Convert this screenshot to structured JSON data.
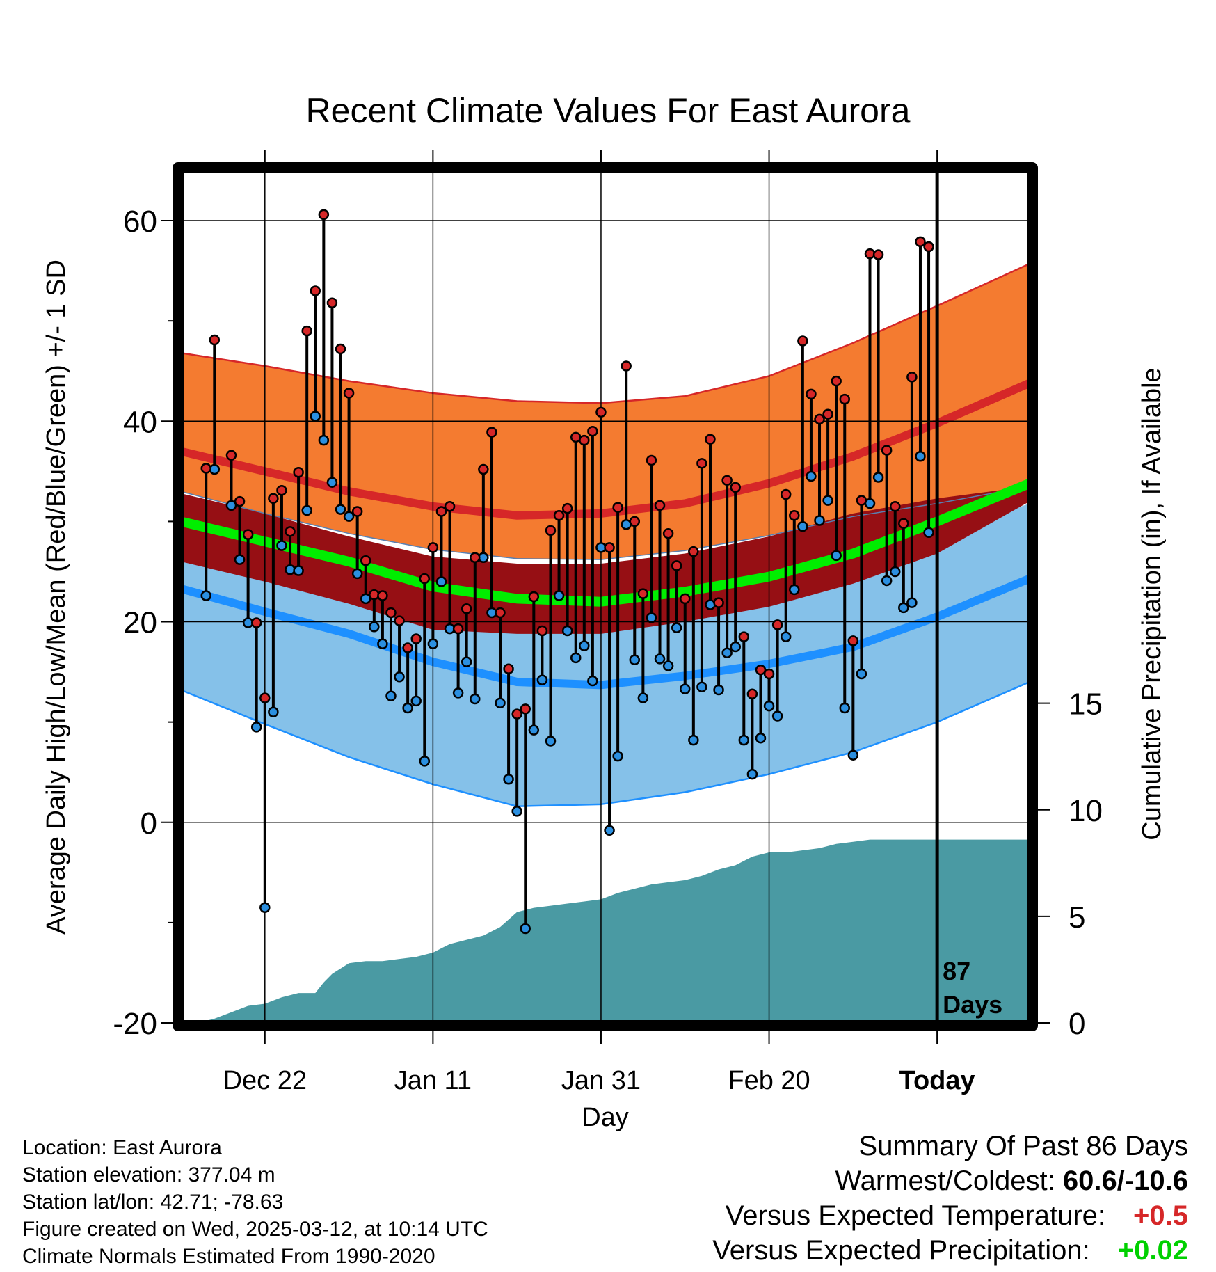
{
  "header": {
    "title": "Recent Climate Values For East Aurora"
  },
  "chart_data": {
    "type": "line",
    "title": "Recent Climate Values For East Aurora",
    "xlabel": "Day",
    "ylabel": "Average Daily High/Low/Mean (Red/Blue/Green) +/- 1 SD",
    "ylabel_right": "Cumulative Precipitation (in), If Available",
    "ylim": [
      -20,
      65
    ],
    "yticks": [
      -20,
      0,
      20,
      40,
      60
    ],
    "ylim_right": [
      0,
      40
    ],
    "yticks_right": [
      0,
      5,
      10,
      15
    ],
    "xlim": [
      0,
      101
    ],
    "xticks": [
      {
        "day": 10,
        "label": "Dec 22"
      },
      {
        "day": 30,
        "label": "Jan 11"
      },
      {
        "day": 50,
        "label": "Jan 31"
      },
      {
        "day": 70,
        "label": "Feb 20"
      },
      {
        "day": 90,
        "label": "Today"
      }
    ],
    "today_day": 90,
    "today_annotation": [
      "87",
      "Days"
    ],
    "grid": true,
    "colors": {
      "high_band": "#f47b30",
      "high_line": "#d62728",
      "low_band": "#85c1e9",
      "low_line": "#1e90ff",
      "mean_band": "#960f14",
      "mean_line": "#00ee00",
      "precip": "#4a9aa3",
      "high_marker": "#d62728",
      "low_marker": "#2b8fe0"
    },
    "normals": {
      "days": [
        0,
        10,
        20,
        30,
        40,
        50,
        60,
        70,
        80,
        90,
        101
      ],
      "high_mean": [
        37.0,
        35.0,
        33.0,
        31.5,
        30.6,
        30.8,
        31.8,
        33.8,
        36.5,
        39.8,
        43.8
      ],
      "high_upper": [
        46.8,
        45.5,
        44.0,
        42.8,
        42.0,
        41.8,
        42.5,
        44.5,
        47.8,
        51.5,
        55.7
      ],
      "high_lower": [
        33.0,
        30.8,
        28.8,
        27.2,
        26.3,
        26.2,
        27.1,
        28.6,
        30.5,
        31.8,
        33.5
      ],
      "low_mean": [
        23.3,
        21.0,
        18.8,
        16.0,
        14.0,
        13.7,
        14.6,
        15.8,
        17.5,
        20.5,
        24.3
      ],
      "low_upper": [
        26.7,
        24.5,
        22.5,
        21.0,
        20.0,
        20.2,
        21.0,
        22.2,
        24.8,
        28.5,
        31.8
      ],
      "low_lower": [
        13.2,
        9.8,
        6.5,
        3.8,
        1.6,
        1.8,
        3.0,
        4.8,
        7.0,
        10.0,
        14.0
      ],
      "mean_mean": [
        30.0,
        28.0,
        26.0,
        23.5,
        22.3,
        22.0,
        23.0,
        24.5,
        26.8,
        30.0,
        33.8
      ],
      "mean_upper": [
        32.8,
        30.8,
        28.5,
        26.5,
        25.8,
        25.8,
        26.8,
        28.5,
        30.8,
        32.3,
        33.5
      ],
      "mean_lower": [
        26.0,
        24.0,
        21.8,
        19.2,
        18.8,
        18.8,
        20.0,
        21.5,
        23.8,
        26.8,
        32.0
      ]
    },
    "series": [
      {
        "name": "High",
        "days": [
          3,
          4,
          6,
          7,
          8,
          9,
          10,
          11,
          12,
          13,
          14,
          15,
          16,
          17,
          18,
          19,
          20,
          21,
          22,
          23,
          24,
          25,
          26,
          27,
          28,
          29,
          30,
          31,
          32,
          33,
          34,
          35,
          36,
          37,
          38,
          39,
          40,
          41,
          42,
          43,
          44,
          45,
          46,
          47,
          48,
          49,
          50,
          51,
          52,
          53,
          54,
          55,
          56,
          57,
          58,
          59,
          60,
          61,
          62,
          63,
          64,
          65,
          66,
          67,
          68,
          69,
          70,
          71,
          72,
          73,
          74,
          75,
          76,
          77,
          78,
          79,
          80,
          81,
          82,
          83,
          84,
          85,
          86,
          87,
          88,
          89
        ],
        "values": [
          35.3,
          48.1,
          36.6,
          32.0,
          28.7,
          19.9,
          12.4,
          32.3,
          33.1,
          29.0,
          34.9,
          49.0,
          53.0,
          60.6,
          51.8,
          47.2,
          42.8,
          31.0,
          26.1,
          22.7,
          22.6,
          20.9,
          20.1,
          17.4,
          18.3,
          24.3,
          27.4,
          31.0,
          31.5,
          19.3,
          21.3,
          26.4,
          35.2,
          38.9,
          20.9,
          15.3,
          10.8,
          11.3,
          22.5,
          19.1,
          29.1,
          30.6,
          31.3,
          38.4,
          38.1,
          39.0,
          40.9,
          27.4,
          31.4,
          45.5,
          30.0,
          22.8,
          36.1,
          31.6,
          28.8,
          25.6,
          22.3,
          27.0,
          35.8,
          38.2,
          21.9,
          34.1,
          33.4,
          18.5,
          12.8,
          15.2,
          14.8,
          19.7,
          32.7,
          30.6,
          48.0,
          42.7,
          40.2,
          40.7,
          44.0,
          42.2,
          18.1,
          32.1,
          56.7,
          56.6,
          37.1,
          31.5,
          29.8,
          44.4,
          57.9,
          57.4
        ]
      },
      {
        "name": "Low",
        "days": [
          3,
          4,
          6,
          7,
          8,
          9,
          10,
          11,
          12,
          13,
          14,
          15,
          16,
          17,
          18,
          19,
          20,
          21,
          22,
          23,
          24,
          25,
          26,
          27,
          28,
          29,
          30,
          31,
          32,
          33,
          34,
          35,
          36,
          37,
          38,
          39,
          40,
          41,
          42,
          43,
          44,
          45,
          46,
          47,
          48,
          49,
          50,
          51,
          52,
          53,
          54,
          55,
          56,
          57,
          58,
          59,
          60,
          61,
          62,
          63,
          64,
          65,
          66,
          67,
          68,
          69,
          70,
          71,
          72,
          73,
          74,
          75,
          76,
          77,
          78,
          79,
          80,
          81,
          82,
          83,
          84,
          85,
          86,
          87,
          88,
          89
        ],
        "values": [
          22.6,
          35.2,
          31.6,
          26.2,
          19.9,
          9.5,
          -8.5,
          11.0,
          27.6,
          25.2,
          25.1,
          31.1,
          40.5,
          38.1,
          33.9,
          31.2,
          30.5,
          24.8,
          22.3,
          19.5,
          17.8,
          12.6,
          14.5,
          11.4,
          12.1,
          6.1,
          17.8,
          24.0,
          19.3,
          12.9,
          16.0,
          12.3,
          26.4,
          20.9,
          11.9,
          4.3,
          1.1,
          -10.6,
          9.2,
          14.2,
          8.1,
          22.6,
          19.1,
          16.4,
          17.6,
          14.1,
          27.4,
          -0.8,
          6.6,
          29.7,
          16.2,
          12.4,
          20.4,
          16.3,
          15.6,
          19.4,
          13.3,
          8.2,
          13.5,
          21.7,
          13.2,
          16.9,
          17.5,
          8.2,
          4.8,
          8.4,
          11.6,
          10.6,
          18.5,
          23.2,
          29.5,
          34.5,
          30.1,
          32.1,
          26.6,
          11.4,
          6.7,
          14.8,
          31.8,
          34.4,
          24.1,
          25.0,
          21.4,
          21.9,
          36.5,
          28.9
        ]
      }
    ],
    "precipitation": {
      "days": [
        0,
        2,
        4,
        6,
        8,
        10,
        12,
        14,
        16,
        17,
        18,
        20,
        22,
        24,
        26,
        28,
        30,
        32,
        34,
        36,
        38,
        40,
        42,
        44,
        46,
        48,
        50,
        52,
        54,
        56,
        58,
        60,
        62,
        64,
        66,
        68,
        70,
        72,
        74,
        76,
        78,
        80,
        82,
        84,
        86,
        88,
        90,
        95,
        101
      ],
      "values": [
        0,
        0,
        0.2,
        0.5,
        0.8,
        0.9,
        1.2,
        1.4,
        1.4,
        1.9,
        2.3,
        2.8,
        2.9,
        2.9,
        3.0,
        3.1,
        3.3,
        3.7,
        3.9,
        4.1,
        4.5,
        5.2,
        5.4,
        5.5,
        5.6,
        5.7,
        5.8,
        6.1,
        6.3,
        6.5,
        6.6,
        6.7,
        6.9,
        7.2,
        7.4,
        7.8,
        8.0,
        8.0,
        8.1,
        8.2,
        8.4,
        8.5,
        8.6,
        8.6,
        8.6,
        8.6,
        8.6,
        8.6,
        8.6
      ]
    }
  },
  "meta": {
    "location": "Location: East Aurora",
    "elevation": "Station elevation: 377.04 m",
    "latlon": "Station lat/lon: 42.71; -78.63",
    "created": "Figure created on Wed, 2025-03-12, at 10:14 UTC",
    "normals": "Climate Normals Estimated From 1990-2020"
  },
  "summary": {
    "heading": "Summary Of Past 86 Days",
    "warm_cold_label": "Warmest/Coldest:",
    "warm_cold_value": "60.6/-10.6",
    "temp_label": "Versus Expected Temperature:",
    "temp_value": "+0.5",
    "precip_label": "Versus Expected Precipitation:",
    "precip_value": "+0.02"
  }
}
